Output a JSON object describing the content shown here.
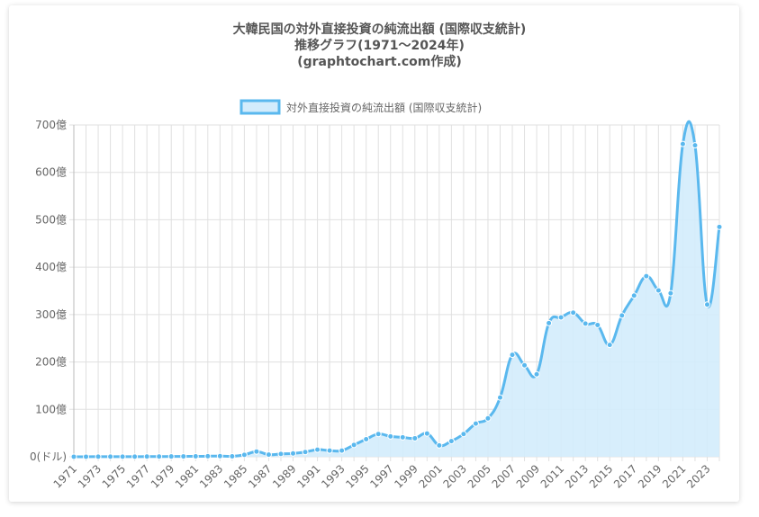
{
  "chart_data": {
    "type": "area",
    "title": [
      "大韓民国の対外直接投資の純流出額 (国際収支統計)",
      "推移グラフ(1971〜2024年)",
      "(graphtochart.com作成)"
    ],
    "legend": "対外直接投資の純流出額 (国際収支統計)",
    "legend_position": "top",
    "grid": true,
    "ylim": [
      0,
      700
    ],
    "y_ticks": [
      "0(ドル)",
      "100億",
      "200億",
      "300億",
      "400億",
      "500億",
      "600億",
      "700億"
    ],
    "x_tick_labels": [
      "1971",
      "1973",
      "1975",
      "1977",
      "1979",
      "1981",
      "1983",
      "1985",
      "1987",
      "1989",
      "1991",
      "1993",
      "1995",
      "1997",
      "1999",
      "2001",
      "2003",
      "2005",
      "2007",
      "2009",
      "2011",
      "2013",
      "2015",
      "2017",
      "2019",
      "2021",
      "2023"
    ],
    "x": [
      1971,
      1972,
      1973,
      1974,
      1975,
      1976,
      1977,
      1978,
      1979,
      1980,
      1981,
      1982,
      1983,
      1984,
      1985,
      1986,
      1987,
      1988,
      1989,
      1990,
      1991,
      1992,
      1993,
      1994,
      1995,
      1996,
      1997,
      1998,
      1999,
      2000,
      2001,
      2002,
      2003,
      2004,
      2005,
      2006,
      2007,
      2008,
      2009,
      2010,
      2011,
      2012,
      2013,
      2014,
      2015,
      2016,
      2017,
      2018,
      2019,
      2020,
      2021,
      2022,
      2023,
      2024
    ],
    "values": [
      0.1,
      0.1,
      0.2,
      0.2,
      0.3,
      0.3,
      0.4,
      0.5,
      0.6,
      0.8,
      0.9,
      1.2,
      1.5,
      1.0,
      4.0,
      11.0,
      4.5,
      6.0,
      7.0,
      10.0,
      15.0,
      13.0,
      13.0,
      25.0,
      37.0,
      48.0,
      43.0,
      41.0,
      39.0,
      49.0,
      24.0,
      33.0,
      48.0,
      70.0,
      81.0,
      125.0,
      215.0,
      193.0,
      174.0,
      282.0,
      294.0,
      304.0,
      281.0,
      278.0,
      236.0,
      298.0,
      340.0,
      381.0,
      351.0,
      345.0,
      660.0,
      657.0,
      321.0,
      485.0
    ],
    "colors": {
      "line": "#5ab8ee",
      "fill": "#d3ecfc",
      "grid": "#e0e0e0",
      "text": "#666666"
    }
  }
}
